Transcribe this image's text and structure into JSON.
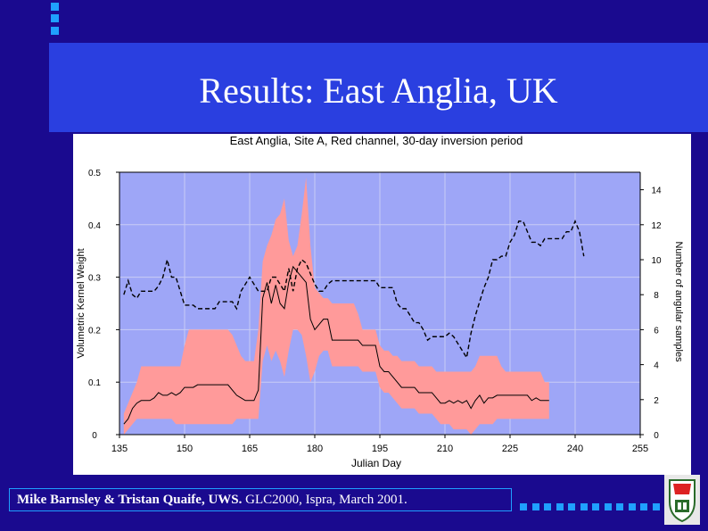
{
  "slide": {
    "title": "Results: East Anglia, UK",
    "footer_bold": "Mike Barnsley & Tristan Quaife, UWS.",
    "footer_rest": " GLC2000, Ispra, March 2001."
  },
  "colors": {
    "background": "#1a0a8f",
    "title_band": "#2a3fe0",
    "accent": "#1fa0ff",
    "plot_bg": "#9ea6f7",
    "band": "#ff9a9a"
  },
  "icons": [
    "decorative-squares-icon",
    "uws-crest-icon"
  ],
  "chart_data": {
    "type": "line",
    "title": "East Anglia, Site A, Red channel, 30-day inversion period",
    "xlabel": "Julian Day",
    "ylabel": "Volumetric Kernel Weight",
    "y2label": "Number of angular samples",
    "xlim": [
      135,
      255
    ],
    "ylim": [
      0,
      0.5
    ],
    "y2lim": [
      0,
      15
    ],
    "xticks": [
      135,
      150,
      165,
      180,
      195,
      210,
      225,
      240,
      255
    ],
    "yticks": [
      0,
      0.1,
      0.2,
      0.3,
      0.4,
      0.5
    ],
    "y2ticks": [
      0,
      2,
      4,
      6,
      8,
      10,
      12,
      14
    ],
    "grid": true,
    "series": [
      {
        "style": "solid",
        "axis": "left",
        "x": [
          136,
          137,
          138,
          139,
          140,
          141,
          142,
          143,
          144,
          145,
          146,
          147,
          148,
          149,
          150,
          151,
          152,
          153,
          154,
          155,
          156,
          157,
          158,
          159,
          160,
          161,
          162,
          163,
          164,
          165,
          166,
          167,
          168,
          169,
          170,
          171,
          172,
          173,
          174,
          175,
          176,
          177,
          178,
          179,
          180,
          181,
          182,
          183,
          184,
          185,
          186,
          187,
          188,
          189,
          190,
          191,
          192,
          193,
          194,
          195,
          196,
          197,
          198,
          199,
          200,
          201,
          202,
          203,
          204,
          205,
          206,
          207,
          208,
          209,
          210,
          211,
          212,
          213,
          214,
          215,
          216,
          217,
          218,
          219,
          220,
          221,
          222,
          223,
          224,
          225,
          226,
          227,
          228,
          229,
          230,
          231,
          232,
          233,
          234
        ],
        "y": [
          0.02,
          0.03,
          0.05,
          0.06,
          0.065,
          0.065,
          0.065,
          0.07,
          0.08,
          0.075,
          0.075,
          0.08,
          0.075,
          0.08,
          0.09,
          0.09,
          0.09,
          0.095,
          0.095,
          0.095,
          0.095,
          0.095,
          0.095,
          0.095,
          0.095,
          0.085,
          0.075,
          0.07,
          0.065,
          0.065,
          0.065,
          0.085,
          0.26,
          0.29,
          0.25,
          0.285,
          0.25,
          0.24,
          0.29,
          0.32,
          0.31,
          0.3,
          0.29,
          0.22,
          0.2,
          0.21,
          0.22,
          0.22,
          0.18,
          0.18,
          0.18,
          0.18,
          0.18,
          0.18,
          0.18,
          0.17,
          0.17,
          0.17,
          0.17,
          0.13,
          0.12,
          0.12,
          0.11,
          0.1,
          0.09,
          0.09,
          0.09,
          0.09,
          0.08,
          0.08,
          0.08,
          0.08,
          0.07,
          0.06,
          0.06,
          0.065,
          0.06,
          0.065,
          0.06,
          0.065,
          0.05,
          0.065,
          0.075,
          0.06,
          0.07,
          0.07,
          0.075,
          0.075,
          0.075,
          0.075,
          0.075,
          0.075,
          0.075,
          0.075,
          0.065,
          0.07,
          0.065,
          0.065,
          0.065
        ],
        "band_upper": [
          0.04,
          0.06,
          0.08,
          0.1,
          0.13,
          0.13,
          0.13,
          0.13,
          0.13,
          0.13,
          0.13,
          0.13,
          0.13,
          0.13,
          0.17,
          0.2,
          0.2,
          0.2,
          0.2,
          0.2,
          0.2,
          0.2,
          0.2,
          0.2,
          0.2,
          0.19,
          0.17,
          0.15,
          0.14,
          0.14,
          0.14,
          0.2,
          0.33,
          0.36,
          0.38,
          0.41,
          0.42,
          0.45,
          0.37,
          0.34,
          0.36,
          0.42,
          0.49,
          0.36,
          0.28,
          0.27,
          0.26,
          0.26,
          0.25,
          0.25,
          0.25,
          0.25,
          0.25,
          0.25,
          0.23,
          0.2,
          0.2,
          0.2,
          0.2,
          0.17,
          0.16,
          0.16,
          0.15,
          0.15,
          0.14,
          0.14,
          0.14,
          0.14,
          0.13,
          0.13,
          0.13,
          0.13,
          0.12,
          0.12,
          0.12,
          0.12,
          0.12,
          0.12,
          0.12,
          0.12,
          0.12,
          0.13,
          0.15,
          0.15,
          0.15,
          0.15,
          0.15,
          0.13,
          0.12,
          0.12,
          0.12,
          0.12,
          0.12,
          0.12,
          0.12,
          0.12,
          0.12,
          0.1,
          0.1
        ],
        "band_lower": [
          0.0,
          0.01,
          0.02,
          0.03,
          0.03,
          0.03,
          0.03,
          0.03,
          0.03,
          0.03,
          0.03,
          0.03,
          0.02,
          0.02,
          0.02,
          0.02,
          0.02,
          0.02,
          0.02,
          0.02,
          0.02,
          0.02,
          0.02,
          0.02,
          0.02,
          0.02,
          0.03,
          0.03,
          0.03,
          0.03,
          0.03,
          0.03,
          0.14,
          0.17,
          0.14,
          0.16,
          0.14,
          0.11,
          0.16,
          0.2,
          0.2,
          0.19,
          0.15,
          0.1,
          0.12,
          0.15,
          0.16,
          0.16,
          0.13,
          0.13,
          0.13,
          0.13,
          0.13,
          0.13,
          0.13,
          0.12,
          0.12,
          0.12,
          0.12,
          0.09,
          0.08,
          0.08,
          0.07,
          0.06,
          0.05,
          0.05,
          0.05,
          0.05,
          0.04,
          0.04,
          0.04,
          0.04,
          0.03,
          0.02,
          0.02,
          0.02,
          0.01,
          0.01,
          0.01,
          0.01,
          0.0,
          0.01,
          0.02,
          0.02,
          0.02,
          0.02,
          0.03,
          0.03,
          0.03,
          0.03,
          0.03,
          0.03,
          0.03,
          0.03,
          0.03,
          0.03,
          0.03,
          0.03,
          0.03
        ]
      },
      {
        "style": "dashed",
        "axis": "right",
        "x": [
          136,
          137,
          138,
          139,
          140,
          141,
          142,
          143,
          144,
          145,
          146,
          147,
          148,
          149,
          150,
          151,
          152,
          153,
          154,
          155,
          156,
          157,
          158,
          159,
          160,
          161,
          162,
          163,
          164,
          165,
          166,
          167,
          168,
          169,
          170,
          171,
          172,
          173,
          174,
          175,
          176,
          177,
          178,
          179,
          180,
          181,
          182,
          183,
          184,
          185,
          186,
          187,
          188,
          189,
          190,
          191,
          192,
          193,
          194,
          195,
          196,
          197,
          198,
          199,
          200,
          201,
          202,
          203,
          204,
          205,
          206,
          207,
          208,
          209,
          210,
          211,
          212,
          213,
          214,
          215,
          216,
          217,
          218,
          219,
          220,
          221,
          222,
          223,
          224,
          225,
          226,
          227,
          228,
          229,
          230,
          231,
          232,
          233,
          234,
          235,
          236,
          237,
          238,
          239,
          240,
          241,
          242
        ],
        "y": [
          8,
          8.8,
          8,
          7.8,
          8.2,
          8.2,
          8.2,
          8.2,
          8.5,
          9,
          10,
          9,
          9,
          8.2,
          7.4,
          7.4,
          7.4,
          7.2,
          7.2,
          7.2,
          7.2,
          7.2,
          7.6,
          7.6,
          7.6,
          7.6,
          7.2,
          8.2,
          8.6,
          9,
          8.6,
          8.2,
          8.2,
          8.2,
          9,
          9,
          8.6,
          8.2,
          9.5,
          8.2,
          9.5,
          10,
          9.8,
          9.2,
          8.6,
          8.2,
          8.2,
          8.6,
          8.8,
          8.8,
          8.8,
          8.8,
          8.8,
          8.8,
          8.8,
          8.8,
          8.8,
          8.8,
          8.8,
          8.4,
          8.4,
          8.4,
          8.4,
          7.5,
          7.2,
          7.2,
          6.8,
          6.4,
          6.4,
          6.0,
          5.4,
          5.6,
          5.6,
          5.6,
          5.6,
          5.8,
          5.6,
          5.2,
          4.8,
          4.4,
          5.8,
          6.8,
          7.6,
          8.4,
          9,
          10,
          10,
          10.2,
          10.2,
          11,
          11.4,
          12.2,
          12.2,
          11.6,
          11.0,
          11.0,
          10.8,
          11.2,
          11.2,
          11.2,
          11.2,
          11.2,
          11.6,
          11.6,
          12.2,
          11.6,
          10.2
        ]
      }
    ]
  }
}
